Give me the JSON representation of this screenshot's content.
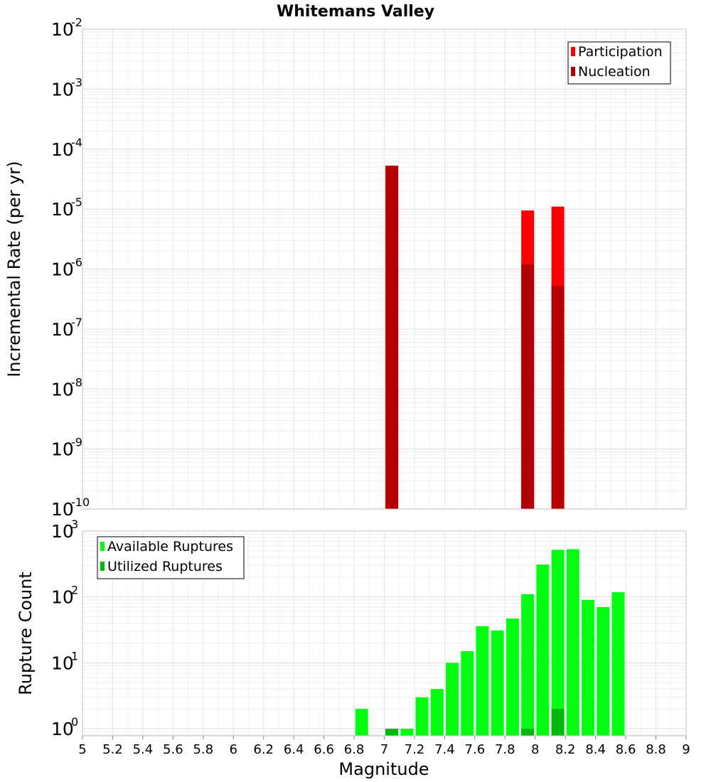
{
  "chart_data": {
    "title": "Whitemans Valley",
    "x_axis": {
      "label": "Magnitude",
      "range": [
        5,
        9
      ],
      "ticks": [
        "5",
        "5.2",
        "5.4",
        "5.6",
        "5.8",
        "6",
        "6.2",
        "6.4",
        "6.6",
        "6.8",
        "7",
        "7.2",
        "7.4",
        "7.6",
        "7.8",
        "8",
        "8.2",
        "8.4",
        "8.6",
        "8.8",
        "9"
      ]
    },
    "panels": [
      {
        "type": "bar",
        "ylabel": "Incremental Rate (per yr)",
        "yscale": "log",
        "ylim": [
          1e-10,
          0.01
        ],
        "yticks": [
          {
            "base": "10",
            "exp": "-10"
          },
          {
            "base": "10",
            "exp": "-9"
          },
          {
            "base": "10",
            "exp": "-8"
          },
          {
            "base": "10",
            "exp": "-7"
          },
          {
            "base": "10",
            "exp": "-6"
          },
          {
            "base": "10",
            "exp": "-5"
          },
          {
            "base": "10",
            "exp": "-4"
          },
          {
            "base": "10",
            "exp": "-3"
          },
          {
            "base": "10",
            "exp": "-2"
          }
        ],
        "legend_position": "top-right",
        "series": [
          {
            "name": "Participation",
            "color": "#ff0000",
            "x": [
              7.05,
              7.95,
              8.15
            ],
            "values": [
              5.3e-05,
              9.5e-06,
              1.1e-05
            ]
          },
          {
            "name": "Nucleation",
            "color": "#b40000",
            "x": [
              7.05,
              7.95,
              8.15
            ],
            "values": [
              5.3e-05,
              1.2e-06,
              5.3e-07
            ]
          }
        ]
      },
      {
        "type": "bar",
        "ylabel": "Rupture Count",
        "yscale": "log",
        "ylim": [
          0.78,
          1000
        ],
        "yticks": [
          {
            "base": "10",
            "exp": "0"
          },
          {
            "base": "10",
            "exp": "1"
          },
          {
            "base": "10",
            "exp": "2"
          },
          {
            "base": "10",
            "exp": "3"
          }
        ],
        "legend_position": "top-left",
        "series": [
          {
            "name": "Available Ruptures",
            "color": "#00ff11",
            "x": [
              6.85,
              7.05,
              7.15,
              7.25,
              7.35,
              7.45,
              7.55,
              7.65,
              7.75,
              7.85,
              7.95,
              8.05,
              8.15,
              8.25,
              8.35,
              8.45,
              8.55
            ],
            "values": [
              2,
              1,
              1,
              3,
              4,
              10,
              15,
              36,
              31,
              47,
              110,
              310,
              520,
              530,
              90,
              70,
              118
            ]
          },
          {
            "name": "Utilized Ruptures",
            "color": "#00b80e",
            "x": [
              7.05,
              7.95,
              8.15
            ],
            "values": [
              1,
              1,
              2
            ]
          }
        ]
      }
    ]
  }
}
